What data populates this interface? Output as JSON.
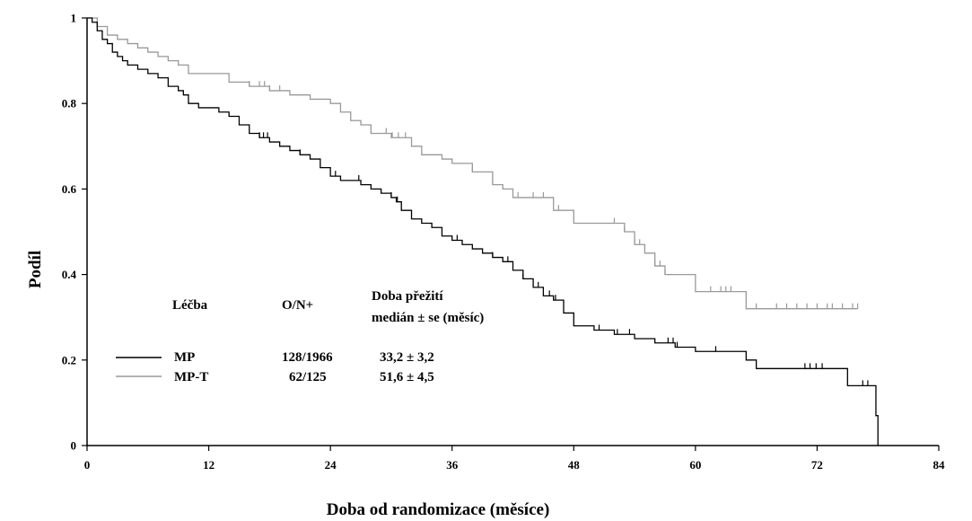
{
  "chart_data": {
    "type": "line",
    "step": true,
    "xlabel": "Doba od randomizace (měsíce)",
    "ylabel": "Podíl",
    "xlim": [
      0,
      84
    ],
    "ylim": [
      0,
      1
    ],
    "xticks": [
      0,
      12,
      24,
      36,
      48,
      60,
      72,
      84
    ],
    "yticks": [
      0,
      0.2,
      0.4,
      0.6,
      0.8,
      1
    ],
    "ytick_labels": [
      "0",
      "0.2",
      "0.4",
      "0.6",
      "0.8",
      "1"
    ],
    "legend": {
      "headers": [
        "Léčba",
        "O/N+",
        "Doba přežití",
        "medián ± se (měsíc)"
      ],
      "rows": [
        {
          "name": "MP",
          "count": "128/1966",
          "median": "33,2 ± 3,2"
        },
        {
          "name": "MP-T",
          "count": "62/125",
          "median": "51,6 ± 4,5"
        }
      ]
    },
    "series": [
      {
        "name": "MP",
        "color": "#000000",
        "x": [
          0,
          0.5,
          1,
          1.5,
          2,
          2.5,
          3,
          3.5,
          4,
          5,
          6,
          7,
          8,
          9,
          9.5,
          10,
          11,
          12,
          13,
          14,
          15,
          16,
          17,
          18,
          19,
          20,
          21,
          22,
          23,
          24,
          25,
          26,
          27,
          28,
          29,
          30,
          30.5,
          31,
          32,
          33,
          34,
          35,
          36,
          37,
          38,
          39,
          40,
          41,
          42,
          43,
          44,
          45,
          46,
          47,
          48,
          50,
          52,
          54,
          56,
          58,
          60,
          62,
          64,
          65,
          66,
          68,
          70,
          72,
          74,
          75,
          77,
          77.8,
          78
        ],
        "y": [
          1,
          0.99,
          0.97,
          0.95,
          0.94,
          0.92,
          0.91,
          0.9,
          0.89,
          0.88,
          0.87,
          0.86,
          0.84,
          0.83,
          0.82,
          0.8,
          0.79,
          0.79,
          0.78,
          0.77,
          0.75,
          0.73,
          0.72,
          0.71,
          0.7,
          0.69,
          0.68,
          0.67,
          0.65,
          0.63,
          0.62,
          0.62,
          0.61,
          0.6,
          0.59,
          0.58,
          0.57,
          0.55,
          0.53,
          0.52,
          0.51,
          0.49,
          0.48,
          0.47,
          0.46,
          0.45,
          0.44,
          0.43,
          0.41,
          0.39,
          0.37,
          0.35,
          0.34,
          0.31,
          0.28,
          0.27,
          0.26,
          0.25,
          0.24,
          0.23,
          0.22,
          0.22,
          0.22,
          0.2,
          0.18,
          0.18,
          0.18,
          0.18,
          0.18,
          0.14,
          0.14,
          0.07,
          0
        ],
        "censor_x": [
          17,
          17.4,
          17.8,
          21,
          24.5,
          26.8,
          30,
          30.6,
          36.5,
          40,
          41.5,
          43,
          44.5,
          45.6,
          46.2,
          50.5,
          52.3,
          53.5,
          57.3,
          57.8,
          58.2,
          62,
          70.8,
          71.3,
          71.9,
          72.5,
          76.5,
          77
        ]
      },
      {
        "name": "MP-T",
        "color": "#999999",
        "x": [
          0,
          1,
          2,
          3,
          4,
          5,
          6,
          7,
          8,
          9,
          10,
          12,
          14,
          16,
          18,
          20,
          22,
          24,
          25,
          26,
          27,
          28,
          30,
          32,
          33,
          34,
          35,
          36,
          38,
          40,
          41,
          42,
          44,
          46,
          48,
          50,
          52,
          53,
          54,
          55,
          56,
          57,
          58,
          60,
          62,
          64,
          65,
          68,
          76
        ],
        "y": [
          1,
          0.98,
          0.96,
          0.95,
          0.94,
          0.93,
          0.92,
          0.91,
          0.9,
          0.89,
          0.87,
          0.87,
          0.85,
          0.84,
          0.83,
          0.82,
          0.81,
          0.8,
          0.78,
          0.76,
          0.75,
          0.73,
          0.72,
          0.7,
          0.68,
          0.68,
          0.67,
          0.66,
          0.64,
          0.61,
          0.6,
          0.58,
          0.58,
          0.55,
          0.52,
          0.52,
          0.52,
          0.5,
          0.47,
          0.45,
          0.42,
          0.4,
          0.4,
          0.36,
          0.36,
          0.36,
          0.32,
          0.32,
          0.32
        ],
        "censor_x": [
          16,
          17,
          17.5,
          18,
          19,
          29.5,
          30.1,
          30.7,
          31.4,
          38,
          40,
          42.5,
          44,
          45,
          46.5,
          52,
          53,
          54,
          54.5,
          56,
          56.5,
          57,
          61.5,
          62.5,
          63,
          63.5,
          66,
          68,
          69,
          70,
          71,
          72,
          73,
          73.5,
          74.5,
          75.5,
          76
        ]
      }
    ]
  }
}
